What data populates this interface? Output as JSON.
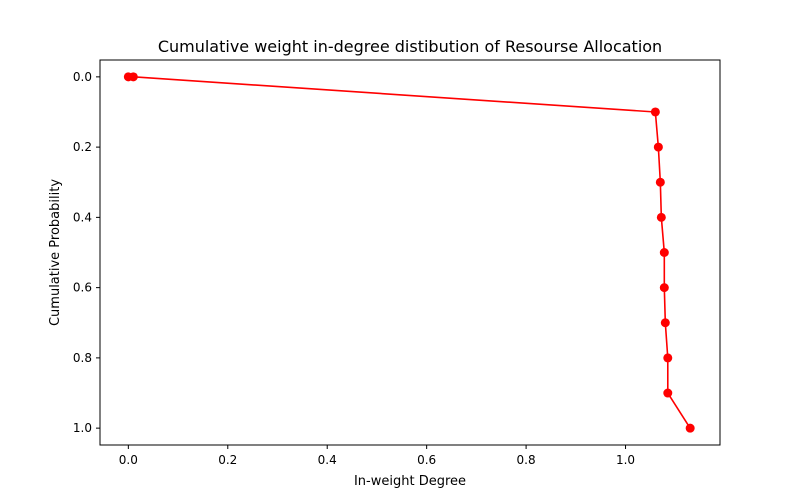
{
  "chart_data": {
    "type": "line",
    "title": "Cumulative weight in-degree distibution of Resourse Allocation",
    "xlabel": "In-weight Degree",
    "ylabel": "Cumulative Probability",
    "xlim": [
      -0.057,
      1.19
    ],
    "ylim": [
      1.048,
      -0.048
    ],
    "y_inverted": true,
    "grid": false,
    "legend": "none",
    "x_ticks": [
      0.0,
      0.2,
      0.4,
      0.6,
      0.8,
      1.0
    ],
    "x_tick_labels": [
      "0.0",
      "0.2",
      "0.4",
      "0.6",
      "0.8",
      "1.0"
    ],
    "y_ticks": [
      0.0,
      0.2,
      0.4,
      0.6,
      0.8,
      1.0
    ],
    "y_tick_labels": [
      "0.0",
      "0.2",
      "0.4",
      "0.6",
      "0.8",
      "1.0"
    ],
    "series": [
      {
        "color": "#ff0000",
        "marker": "circle",
        "x": [
          0.0,
          0.01,
          1.06,
          1.066,
          1.07,
          1.072,
          1.078,
          1.078,
          1.08,
          1.085,
          1.085,
          1.13
        ],
        "y": [
          0.0,
          0.0,
          0.1,
          0.2,
          0.3,
          0.4,
          0.5,
          0.6,
          0.7,
          0.8,
          0.9,
          1.0
        ]
      }
    ]
  }
}
